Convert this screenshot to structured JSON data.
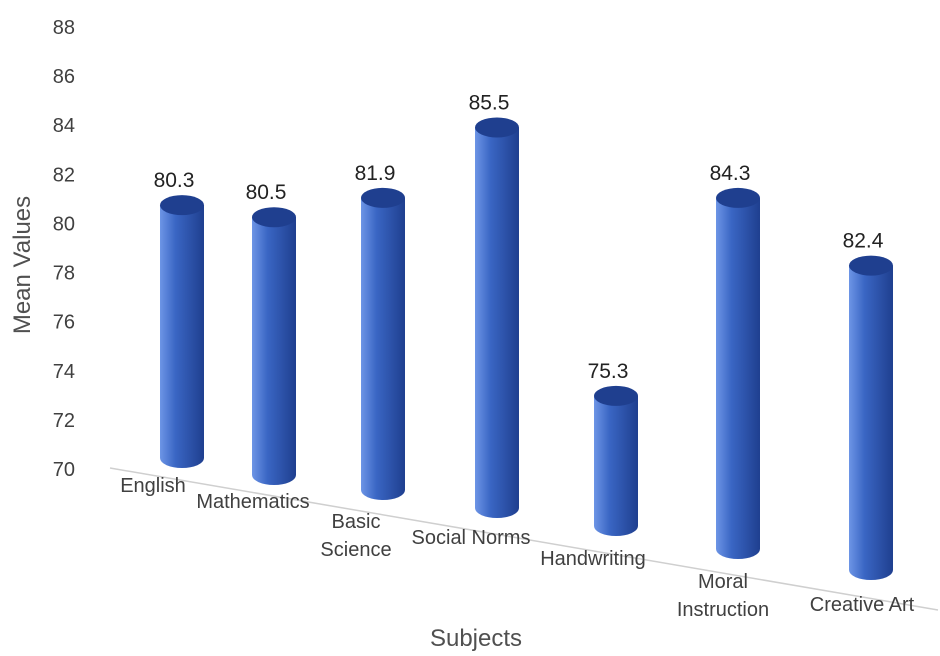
{
  "chart_data": {
    "type": "bar",
    "style": "3d-cylinder",
    "categories": [
      "English",
      "Mathematics",
      "Basic Science",
      "Social Norms",
      "Handwriting",
      "Moral Instruction",
      "Creative Art"
    ],
    "category_lines": [
      [
        "English"
      ],
      [
        "Mathematics"
      ],
      [
        "Basic",
        "Science"
      ],
      [
        "Social Norms"
      ],
      [
        "Handwriting"
      ],
      [
        "Moral",
        "Instruction"
      ],
      [
        "Creative Art"
      ]
    ],
    "series": [
      {
        "values": [
          80.3,
          80.5,
          81.9,
          85.5,
          75.3,
          84.3,
          82.4
        ]
      }
    ],
    "data_labels": [
      "80.3",
      "80.5",
      "81.9",
      "85.5",
      "75.3",
      "84.3",
      "82.4"
    ],
    "yticks": [
      "70",
      "72",
      "74",
      "76",
      "78",
      "80",
      "82",
      "84",
      "86",
      "88"
    ],
    "ylim": [
      70,
      88
    ],
    "xlabel": "Subjects",
    "ylabel": "Mean Values",
    "grid": false,
    "legend": "none",
    "bar_color": "#3a66c4",
    "bar_color_light": "#6d95e6",
    "bar_color_dark": "#1f3f8f"
  }
}
